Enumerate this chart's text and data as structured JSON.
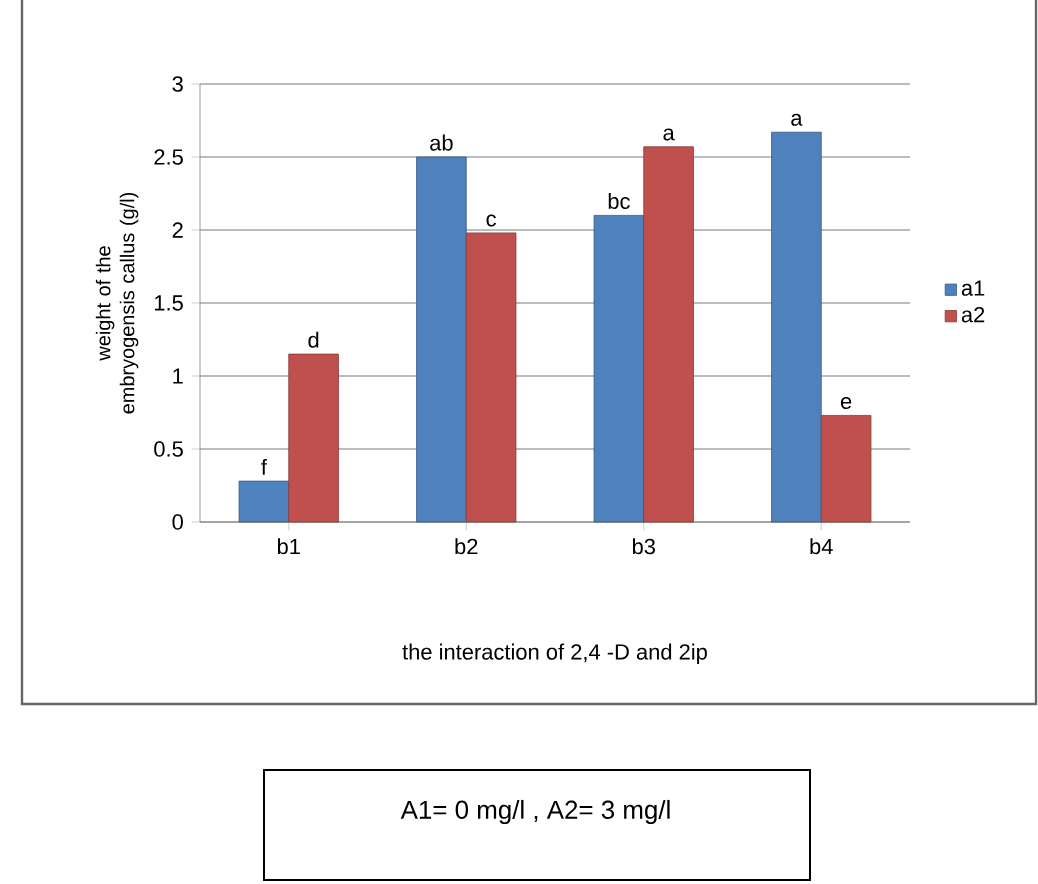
{
  "chart_data": {
    "type": "bar",
    "ylabel": "weight of the embryogensis callus (g/l)",
    "xlabel": "the interaction of 2,4 -D and 2ip",
    "categories": [
      "b1",
      "b2",
      "b3",
      "b4"
    ],
    "series": [
      {
        "name": "a1",
        "color": "#4f81bd",
        "values": [
          0.28,
          2.5,
          2.1,
          2.67
        ],
        "value_labels": [
          "f",
          "ab",
          "bc",
          "a"
        ]
      },
      {
        "name": "a2",
        "color": "#c0504d",
        "values": [
          1.15,
          1.98,
          2.57,
          0.73
        ],
        "value_labels": [
          "d",
          "c",
          "a",
          "e"
        ]
      }
    ],
    "ylim": [
      0,
      3
    ],
    "yticks": [
      0,
      0.5,
      1,
      1.5,
      2,
      2.5,
      3
    ],
    "grid": "y",
    "legend": "right",
    "annotations": [
      "A1= 0 mg/l , A2= 3 mg/l"
    ]
  }
}
